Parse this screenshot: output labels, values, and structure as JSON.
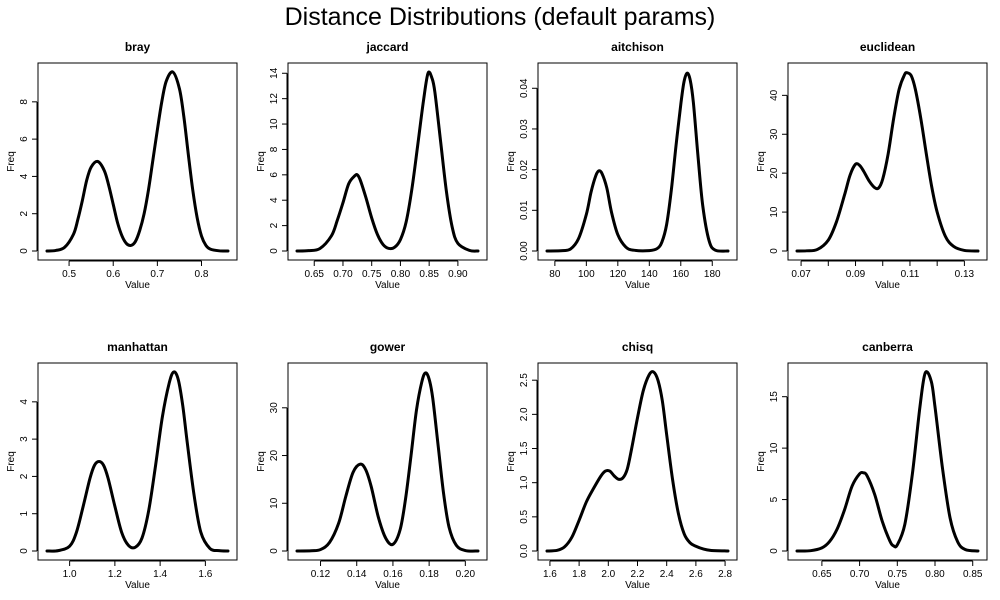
{
  "title": "Distance Distributions (default params)",
  "chart_data": [
    {
      "type": "line",
      "title": "bray",
      "xlabel": "Value",
      "ylabel": "Freq",
      "xlim": [
        0.45,
        0.86
      ],
      "ylim": [
        0,
        9.6
      ],
      "xticks": [
        {
          "v": 0.5,
          "label": "0.5"
        },
        {
          "v": 0.6,
          "label": "0.6"
        },
        {
          "v": 0.7,
          "label": "0.7"
        },
        {
          "v": 0.8,
          "label": "0.8"
        }
      ],
      "yticks": [
        {
          "v": 0,
          "label": "0"
        },
        {
          "v": 2,
          "label": "2"
        },
        {
          "v": 4,
          "label": "4"
        },
        {
          "v": 6,
          "label": "6"
        },
        {
          "v": 8,
          "label": "8"
        }
      ],
      "x": [
        0.45,
        0.47,
        0.49,
        0.51,
        0.52,
        0.53,
        0.54,
        0.55,
        0.565,
        0.58,
        0.59,
        0.6,
        0.61,
        0.62,
        0.63,
        0.64,
        0.65,
        0.66,
        0.67,
        0.68,
        0.69,
        0.7,
        0.71,
        0.72,
        0.735,
        0.75,
        0.76,
        0.77,
        0.78,
        0.79,
        0.8,
        0.81,
        0.82,
        0.84,
        0.86
      ],
      "y": [
        0,
        0.03,
        0.2,
        0.9,
        1.7,
        2.7,
        3.8,
        4.5,
        4.8,
        4.3,
        3.5,
        2.5,
        1.5,
        0.8,
        0.4,
        0.3,
        0.5,
        1.1,
        2.0,
        3.3,
        4.9,
        6.5,
        8.0,
        9.1,
        9.6,
        8.7,
        7.2,
        5.2,
        3.3,
        1.8,
        0.8,
        0.3,
        0.1,
        0.01,
        0
      ]
    },
    {
      "type": "line",
      "title": "jaccard",
      "xlabel": "Value",
      "ylabel": "Freq",
      "xlim": [
        0.62,
        0.935
      ],
      "ylim": [
        0,
        14.1
      ],
      "xticks": [
        {
          "v": 0.65,
          "label": "0.65"
        },
        {
          "v": 0.7,
          "label": "0.70"
        },
        {
          "v": 0.75,
          "label": "0.75"
        },
        {
          "v": 0.8,
          "label": "0.80"
        },
        {
          "v": 0.85,
          "label": "0.85"
        },
        {
          "v": 0.9,
          "label": "0.90"
        }
      ],
      "yticks": [
        {
          "v": 0,
          "label": "0"
        },
        {
          "v": 2,
          "label": "2"
        },
        {
          "v": 4,
          "label": "4"
        },
        {
          "v": 6,
          "label": "6"
        },
        {
          "v": 8,
          "label": "8"
        },
        {
          "v": 10,
          "label": "10"
        },
        {
          "v": 12,
          "label": "12"
        },
        {
          "v": 14,
          "label": "14"
        }
      ],
      "x": [
        0.62,
        0.64,
        0.66,
        0.68,
        0.69,
        0.7,
        0.71,
        0.72,
        0.725,
        0.73,
        0.74,
        0.75,
        0.76,
        0.77,
        0.78,
        0.79,
        0.8,
        0.81,
        0.82,
        0.83,
        0.84,
        0.848,
        0.855,
        0.86,
        0.87,
        0.88,
        0.89,
        0.9,
        0.92,
        0.935
      ],
      "y": [
        0,
        0.03,
        0.2,
        1.2,
        2.4,
        3.8,
        5.3,
        5.9,
        6.0,
        5.6,
        4.2,
        2.6,
        1.3,
        0.5,
        0.2,
        0.3,
        0.9,
        2.3,
        4.9,
        8.3,
        11.8,
        14.0,
        13.6,
        12.5,
        8.6,
        4.7,
        1.9,
        0.6,
        0.05,
        0
      ]
    },
    {
      "type": "line",
      "title": "aitchison",
      "xlabel": "Value",
      "ylabel": "Freq",
      "xlim": [
        75,
        190
      ],
      "ylim": [
        0,
        0.044
      ],
      "xticks": [
        {
          "v": 80,
          "label": "80"
        },
        {
          "v": 100,
          "label": "100"
        },
        {
          "v": 120,
          "label": "120"
        },
        {
          "v": 140,
          "label": "140"
        },
        {
          "v": 160,
          "label": "160"
        },
        {
          "v": 180,
          "label": "180"
        }
      ],
      "yticks": [
        {
          "v": 0,
          "label": "0.00"
        },
        {
          "v": 0.01,
          "label": "0.01"
        },
        {
          "v": 0.02,
          "label": "0.02"
        },
        {
          "v": 0.03,
          "label": "0.03"
        },
        {
          "v": 0.04,
          "label": "0.04"
        }
      ],
      "x": [
        75,
        85,
        90,
        95,
        100,
        103,
        106,
        108,
        110,
        113,
        116,
        120,
        125,
        130,
        140,
        145,
        148,
        151,
        154,
        157,
        160,
        162,
        164,
        166,
        168,
        171,
        174,
        178,
        182,
        190
      ],
      "y": [
        0,
        0.0001,
        0.0005,
        0.003,
        0.009,
        0.0145,
        0.0185,
        0.0197,
        0.019,
        0.0155,
        0.0095,
        0.004,
        0.001,
        0.0002,
        0.0001,
        0.0006,
        0.0022,
        0.0065,
        0.015,
        0.026,
        0.036,
        0.0415,
        0.0437,
        0.042,
        0.0365,
        0.023,
        0.011,
        0.0025,
        0.0002,
        0
      ]
    },
    {
      "type": "line",
      "title": "euclidean",
      "xlabel": "Value",
      "ylabel": "Freq",
      "xlim": [
        0.0685,
        0.135
      ],
      "ylim": [
        0,
        46
      ],
      "xticks": [
        {
          "v": 0.07,
          "label": "0.07"
        },
        {
          "v": 0.08,
          "label": ""
        },
        {
          "v": 0.09,
          "label": "0.09"
        },
        {
          "v": 0.1,
          "label": ""
        },
        {
          "v": 0.11,
          "label": "0.11"
        },
        {
          "v": 0.12,
          "label": ""
        },
        {
          "v": 0.13,
          "label": "0.13"
        }
      ],
      "yticks": [
        {
          "v": 0,
          "label": "0"
        },
        {
          "v": 10,
          "label": "10"
        },
        {
          "v": 20,
          "label": "20"
        },
        {
          "v": 30,
          "label": "30"
        },
        {
          "v": 40,
          "label": "40"
        }
      ],
      "x": [
        0.0685,
        0.072,
        0.076,
        0.08,
        0.083,
        0.086,
        0.088,
        0.09,
        0.0915,
        0.093,
        0.095,
        0.097,
        0.0985,
        0.1,
        0.102,
        0.104,
        0.106,
        0.108,
        0.109,
        0.1105,
        0.112,
        0.114,
        0.116,
        0.118,
        0.12,
        0.123,
        0.126,
        0.13,
        0.135
      ],
      "y": [
        0,
        0.05,
        0.4,
        2.8,
        7.5,
        14.5,
        19.5,
        22.3,
        22.0,
        20.5,
        18.0,
        16.3,
        16.2,
        18.5,
        25.0,
        34.0,
        41.5,
        45.3,
        45.8,
        45.0,
        41.5,
        34.0,
        25.0,
        16.5,
        10.0,
        3.8,
        1.2,
        0.15,
        0
      ]
    },
    {
      "type": "line",
      "title": "manhattan",
      "xlabel": "Value",
      "ylabel": "Freq",
      "xlim": [
        0.9,
        1.7
      ],
      "ylim": [
        0,
        4.8
      ],
      "xticks": [
        {
          "v": 1.0,
          "label": "1.0"
        },
        {
          "v": 1.2,
          "label": "1.2"
        },
        {
          "v": 1.4,
          "label": "1.4"
        },
        {
          "v": 1.6,
          "label": "1.6"
        }
      ],
      "yticks": [
        {
          "v": 0,
          "label": "0"
        },
        {
          "v": 1,
          "label": "1"
        },
        {
          "v": 2,
          "label": "2"
        },
        {
          "v": 3,
          "label": "3"
        },
        {
          "v": 4,
          "label": "4"
        }
      ],
      "x": [
        0.9,
        0.95,
        1.0,
        1.03,
        1.06,
        1.09,
        1.11,
        1.13,
        1.15,
        1.17,
        1.2,
        1.23,
        1.26,
        1.29,
        1.32,
        1.35,
        1.38,
        1.41,
        1.44,
        1.46,
        1.48,
        1.5,
        1.52,
        1.55,
        1.58,
        1.62,
        1.66,
        1.7
      ],
      "y": [
        0,
        0.01,
        0.13,
        0.5,
        1.2,
        1.95,
        2.3,
        2.4,
        2.3,
        1.95,
        1.2,
        0.5,
        0.15,
        0.1,
        0.35,
        1.1,
        2.3,
        3.6,
        4.5,
        4.8,
        4.6,
        3.9,
        2.9,
        1.5,
        0.5,
        0.07,
        0.01,
        0
      ]
    },
    {
      "type": "line",
      "title": "gower",
      "xlabel": "Value",
      "ylabel": "Freq",
      "xlim": [
        0.107,
        0.207
      ],
      "ylim": [
        0,
        37.5
      ],
      "xticks": [
        {
          "v": 0.12,
          "label": "0.12"
        },
        {
          "v": 0.14,
          "label": "0.14"
        },
        {
          "v": 0.16,
          "label": "0.16"
        },
        {
          "v": 0.18,
          "label": "0.18"
        },
        {
          "v": 0.2,
          "label": "0.20"
        }
      ],
      "yticks": [
        {
          "v": 0,
          "label": "0"
        },
        {
          "v": 10,
          "label": "10"
        },
        {
          "v": 20,
          "label": "20"
        },
        {
          "v": 30,
          "label": "30"
        }
      ],
      "x": [
        0.107,
        0.115,
        0.12,
        0.125,
        0.13,
        0.134,
        0.138,
        0.142,
        0.145,
        0.148,
        0.152,
        0.156,
        0.16,
        0.164,
        0.167,
        0.17,
        0.173,
        0.176,
        0.178,
        0.18,
        0.182,
        0.185,
        0.188,
        0.191,
        0.195,
        0.2,
        0.207
      ],
      "y": [
        0,
        0.05,
        0.3,
        1.8,
        5.8,
        11.5,
        16.5,
        18.2,
        17.0,
        13.5,
        7.0,
        2.7,
        1.4,
        4.5,
        11.0,
        20.0,
        29.5,
        35.5,
        37.3,
        36.0,
        32.0,
        22.0,
        12.0,
        5.0,
        1.2,
        0.1,
        0
      ]
    },
    {
      "type": "line",
      "title": "chisq",
      "xlabel": "Value",
      "ylabel": "Freq",
      "xlim": [
        1.58,
        2.82
      ],
      "ylim": [
        0,
        2.62
      ],
      "xticks": [
        {
          "v": 1.6,
          "label": "1.6"
        },
        {
          "v": 1.8,
          "label": "1.8"
        },
        {
          "v": 2.0,
          "label": "2.0"
        },
        {
          "v": 2.2,
          "label": "2.2"
        },
        {
          "v": 2.4,
          "label": "2.4"
        },
        {
          "v": 2.6,
          "label": "2.6"
        },
        {
          "v": 2.8,
          "label": "2.8"
        }
      ],
      "yticks": [
        {
          "v": 0,
          "label": "0.0"
        },
        {
          "v": 0.5,
          "label": "0.5"
        },
        {
          "v": 1.0,
          "label": "1.0"
        },
        {
          "v": 1.5,
          "label": "1.5"
        },
        {
          "v": 2.0,
          "label": "2.0"
        },
        {
          "v": 2.5,
          "label": "2.5"
        }
      ],
      "x": [
        1.58,
        1.65,
        1.7,
        1.75,
        1.8,
        1.85,
        1.9,
        1.95,
        1.98,
        2.01,
        2.04,
        2.07,
        2.1,
        2.13,
        2.16,
        2.2,
        2.24,
        2.28,
        2.31,
        2.34,
        2.37,
        2.4,
        2.44,
        2.48,
        2.52,
        2.56,
        2.6,
        2.65,
        2.7,
        2.82
      ],
      "y": [
        0,
        0.01,
        0.06,
        0.2,
        0.45,
        0.72,
        0.92,
        1.1,
        1.17,
        1.17,
        1.1,
        1.05,
        1.07,
        1.2,
        1.5,
        1.95,
        2.35,
        2.58,
        2.62,
        2.5,
        2.2,
        1.7,
        1.05,
        0.55,
        0.25,
        0.12,
        0.07,
        0.03,
        0.01,
        0
      ]
    },
    {
      "type": "line",
      "title": "canberra",
      "xlabel": "Value",
      "ylabel": "Freq",
      "xlim": [
        0.617,
        0.857
      ],
      "ylim": [
        0,
        17.4
      ],
      "xticks": [
        {
          "v": 0.65,
          "label": "0.65"
        },
        {
          "v": 0.7,
          "label": "0.70"
        },
        {
          "v": 0.75,
          "label": "0.75"
        },
        {
          "v": 0.8,
          "label": "0.80"
        },
        {
          "v": 0.85,
          "label": "0.85"
        }
      ],
      "yticks": [
        {
          "v": 0,
          "label": "0"
        },
        {
          "v": 5,
          "label": "5"
        },
        {
          "v": 10,
          "label": "10"
        },
        {
          "v": 15,
          "label": "15"
        }
      ],
      "x": [
        0.617,
        0.635,
        0.65,
        0.66,
        0.67,
        0.68,
        0.69,
        0.7,
        0.705,
        0.71,
        0.72,
        0.73,
        0.74,
        0.745,
        0.75,
        0.76,
        0.77,
        0.78,
        0.787,
        0.795,
        0.8,
        0.81,
        0.82,
        0.83,
        0.84,
        0.857
      ],
      "y": [
        0,
        0.03,
        0.3,
        0.9,
        2.1,
        4.0,
        6.3,
        7.5,
        7.6,
        7.3,
        5.5,
        2.9,
        1.0,
        0.5,
        0.6,
        2.6,
        7.5,
        14.0,
        17.3,
        16.5,
        14.0,
        8.0,
        3.2,
        0.9,
        0.15,
        0
      ]
    }
  ]
}
